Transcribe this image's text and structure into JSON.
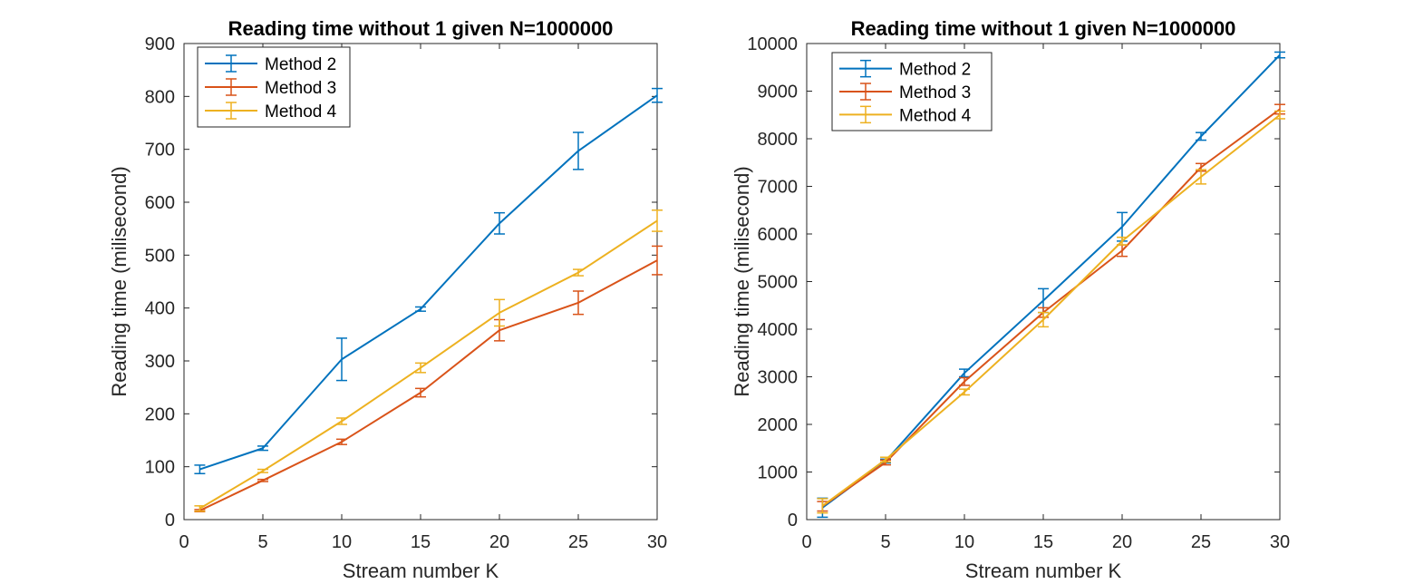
{
  "chart_data": [
    {
      "type": "line",
      "title": "Reading time without 1 given N=1000000",
      "xlabel": "Stream number K",
      "ylabel": "Reading time (milisecond)",
      "xlim": [
        0,
        30
      ],
      "ylim": [
        0,
        900
      ],
      "xticks": [
        0,
        5,
        10,
        15,
        20,
        25,
        30
      ],
      "yticks": [
        0,
        100,
        200,
        300,
        400,
        500,
        600,
        700,
        800,
        900
      ],
      "grid": false,
      "legend_position": "top-left",
      "x": [
        1,
        5,
        10,
        15,
        20,
        25,
        30
      ],
      "series": [
        {
          "name": "Method 2",
          "color": "#0072BD",
          "values": [
            95,
            135,
            303,
            398,
            560,
            697,
            802
          ],
          "errors": [
            8,
            4,
            40,
            4,
            20,
            35,
            13
          ]
        },
        {
          "name": "Method 3",
          "color": "#D95319",
          "values": [
            17,
            74,
            147,
            240,
            358,
            410,
            490
          ],
          "errors": [
            2,
            2,
            5,
            8,
            20,
            22,
            27
          ]
        },
        {
          "name": "Method 4",
          "color": "#EDB120",
          "values": [
            21,
            92,
            186,
            287,
            391,
            467,
            565
          ],
          "errors": [
            5,
            3,
            6,
            9,
            25,
            6,
            20
          ]
        }
      ]
    },
    {
      "type": "line",
      "title": "Reading time without 1 given N=1000000",
      "xlabel": "Stream number K",
      "ylabel": "Reading time (milisecond)",
      "xlim": [
        0,
        30
      ],
      "ylim": [
        0,
        10000
      ],
      "xticks": [
        0,
        5,
        10,
        15,
        20,
        25,
        30
      ],
      "yticks": [
        0,
        1000,
        2000,
        3000,
        4000,
        5000,
        6000,
        7000,
        8000,
        9000,
        10000
      ],
      "grid": false,
      "legend_position": "top-left",
      "x": [
        1,
        5,
        10,
        15,
        20,
        25,
        30
      ],
      "series": [
        {
          "name": "Method 2",
          "color": "#0072BD",
          "values": [
            250,
            1230,
            3080,
            4600,
            6150,
            8050,
            9760
          ],
          "errors": [
            200,
            40,
            80,
            250,
            300,
            80,
            60
          ]
        },
        {
          "name": "Method 3",
          "color": "#D95319",
          "values": [
            280,
            1200,
            2900,
            4350,
            5650,
            7400,
            8620
          ],
          "errors": [
            100,
            50,
            80,
            100,
            120,
            80,
            100
          ]
        },
        {
          "name": "Method 4",
          "color": "#EDB120",
          "values": [
            290,
            1260,
            2680,
            4200,
            5850,
            7200,
            8500
          ],
          "errors": [
            150,
            50,
            60,
            150,
            80,
            150,
            80
          ]
        }
      ]
    }
  ]
}
